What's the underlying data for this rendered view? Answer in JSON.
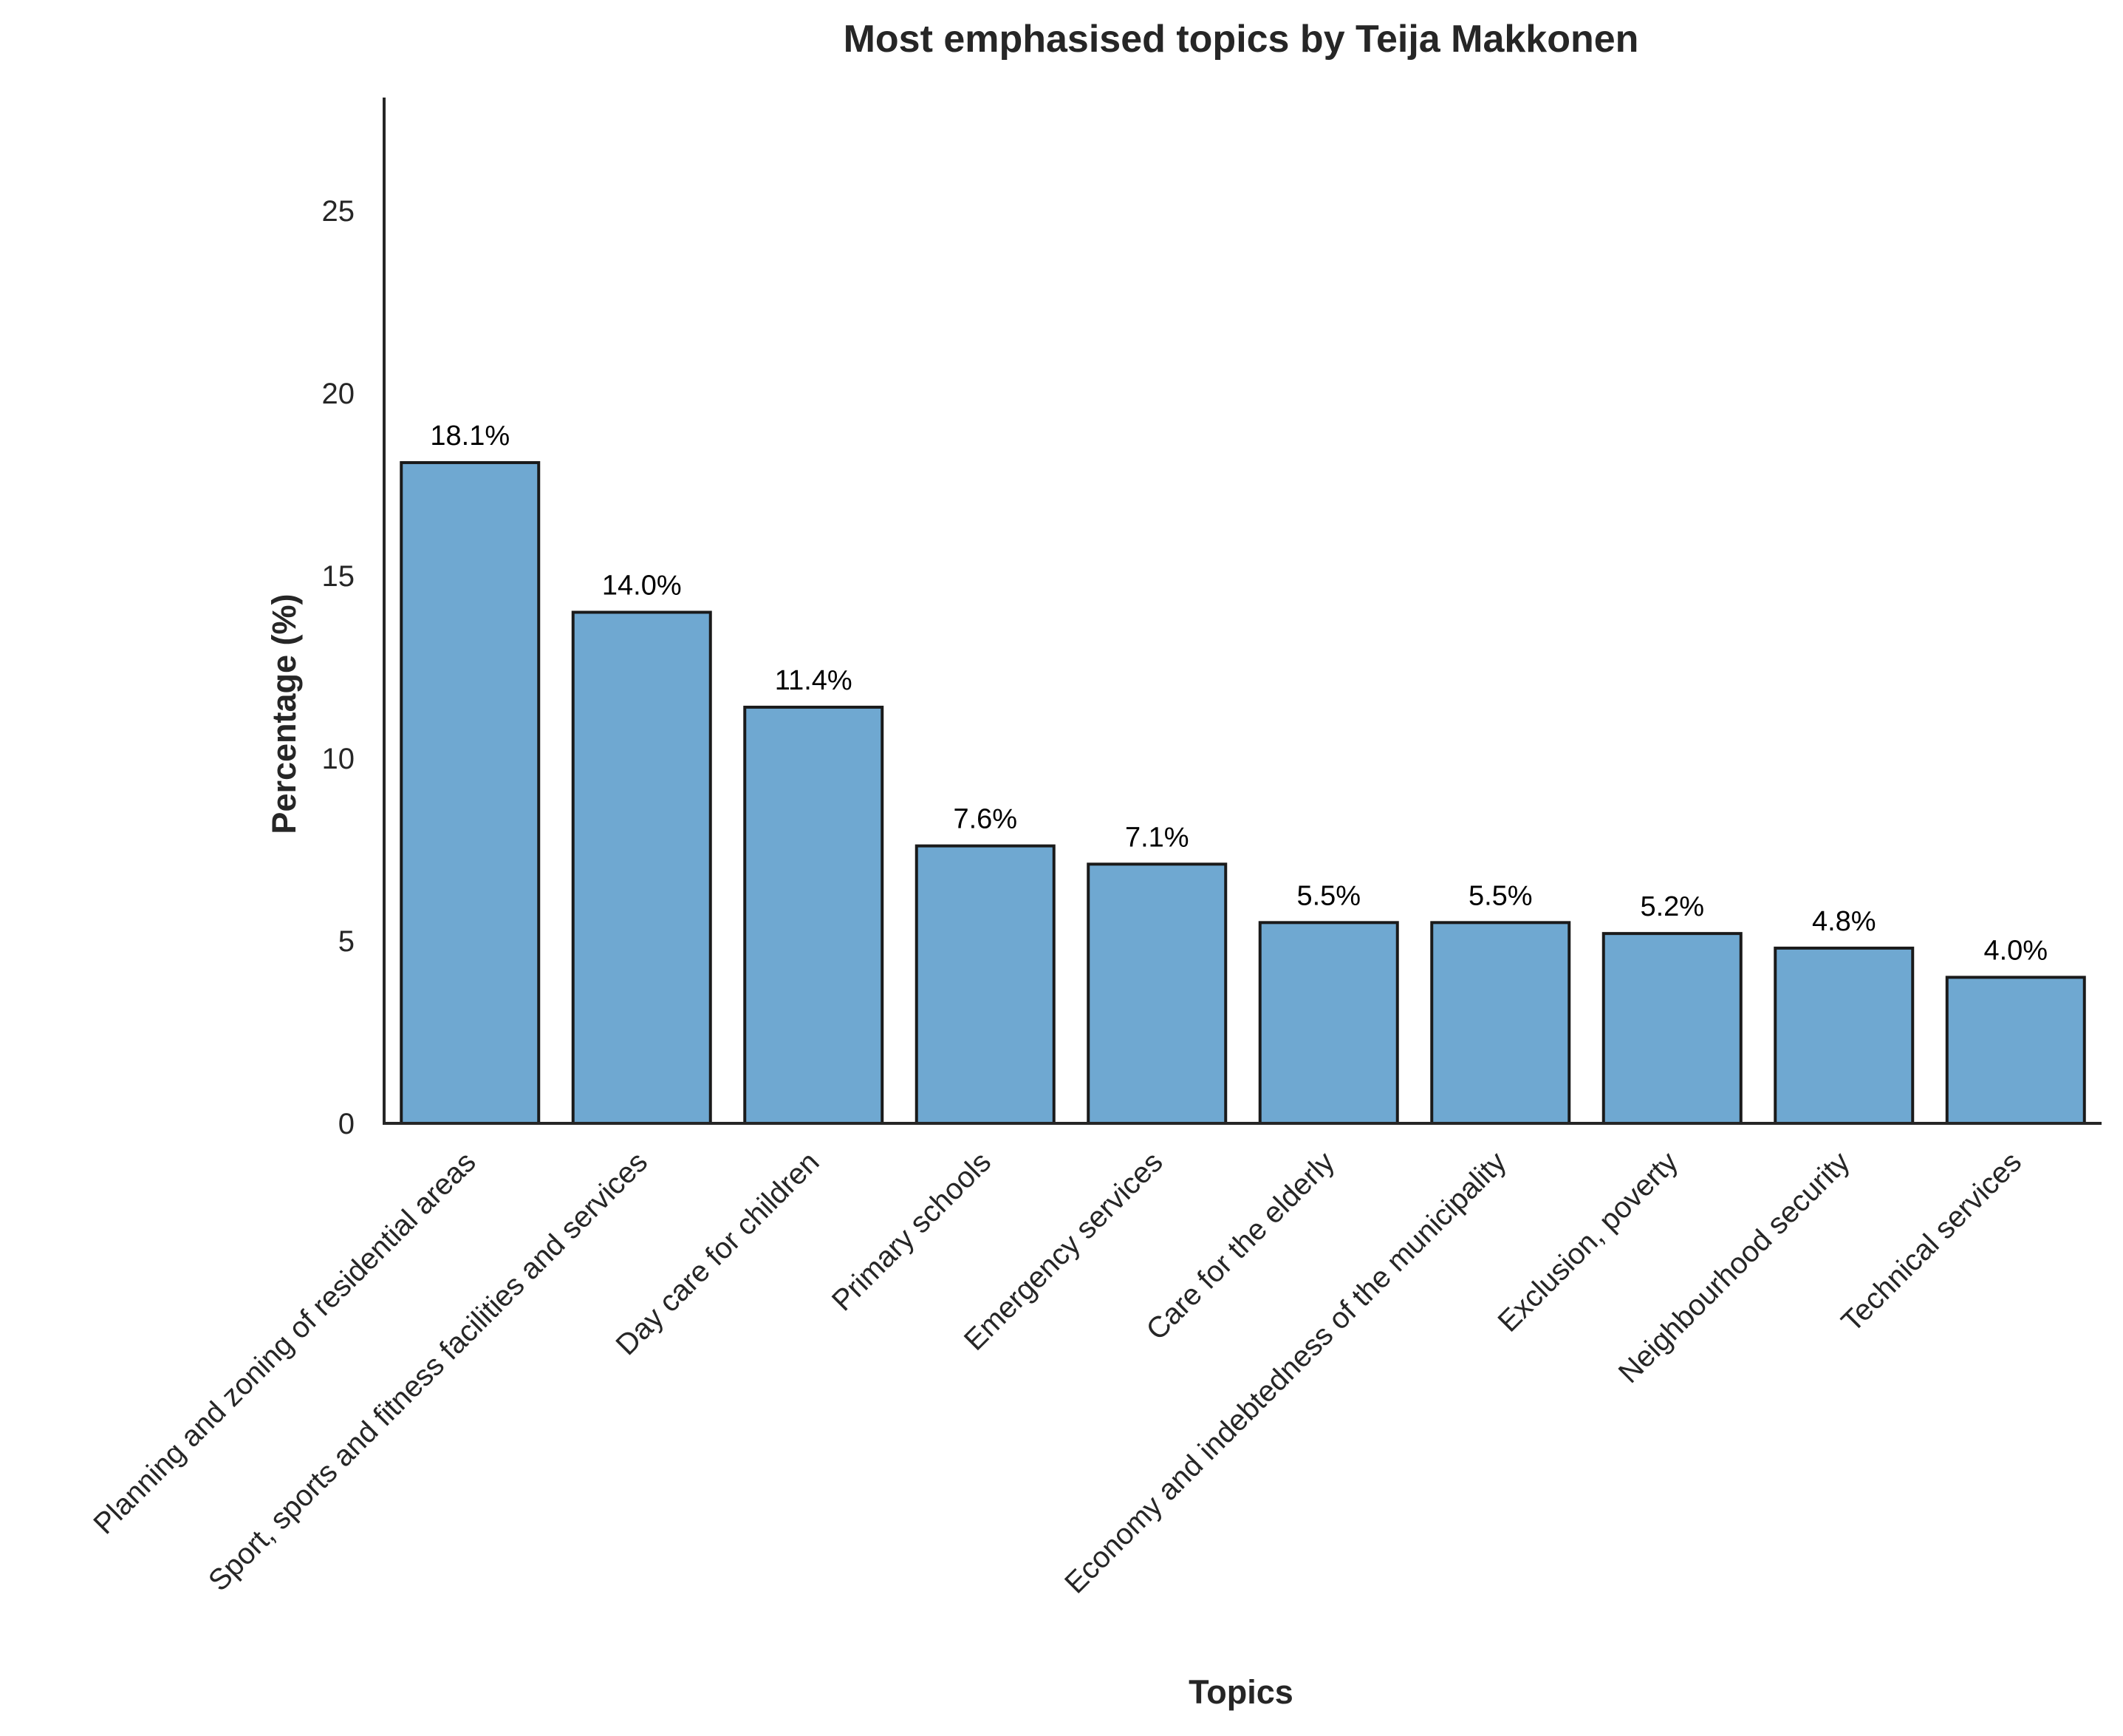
{
  "chart_data": {
    "type": "bar",
    "title": "Most emphasised topics by Teija Makkonen",
    "xlabel": "Topics",
    "ylabel": "Percentage (%)",
    "categories": [
      "Planning and zoning of residential areas",
      "Sport, sports and fitness facilities and services",
      "Day care for children",
      "Primary schools",
      "Emergency services",
      "Care for the elderly",
      "Economy and indebtedness of the municipality",
      "Exclusion, poverty",
      "Neighbourhood security",
      "Technical services"
    ],
    "values": [
      18.1,
      14.0,
      11.4,
      7.6,
      7.1,
      5.5,
      5.5,
      5.2,
      4.8,
      4.0
    ],
    "value_labels": [
      "18.1%",
      "14.0%",
      "11.4%",
      "7.6%",
      "7.1%",
      "5.5%",
      "5.5%",
      "5.2%",
      "4.8%",
      "4.0%"
    ],
    "ylim": [
      0,
      28.1
    ],
    "yticks": [
      0,
      5,
      10,
      15,
      20,
      25
    ],
    "ytick_labels": [
      "0",
      "5",
      "10",
      "15",
      "20",
      "25"
    ],
    "grid": false,
    "legend": "none",
    "bar_color": "#6fa8d1",
    "edge_color": "#1a1a1a"
  }
}
